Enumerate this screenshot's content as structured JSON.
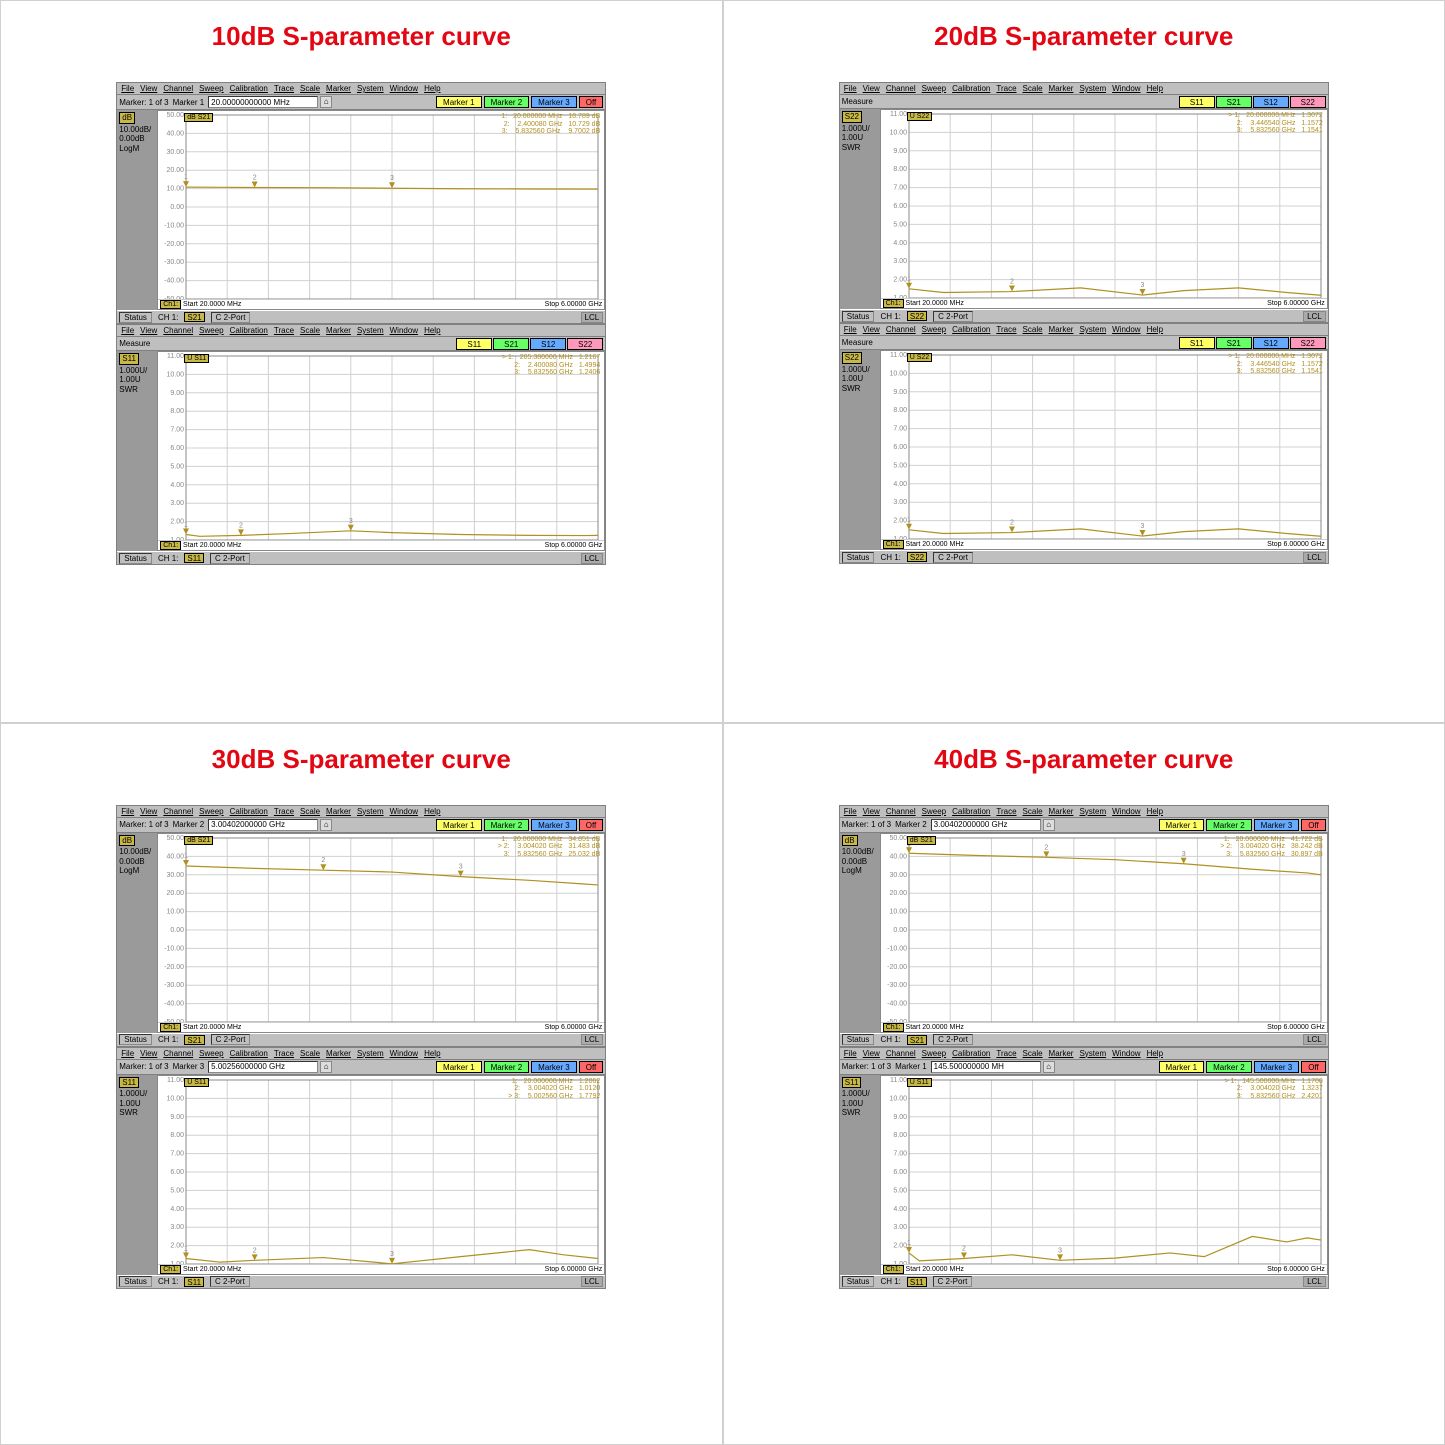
{
  "colors": {
    "title": "#e30613",
    "panel_bg": "#bfbfbf",
    "side_bg": "#9a9a9a",
    "plot_bg": "#ffffff",
    "grid": "#d0d0d0",
    "trace": "#b09020",
    "badge_bg": "#c8b848",
    "btn_marker": "#ffff66",
    "btn_marker2": "#66ff66",
    "btn_marker3": "#66aaff",
    "btn_off": "#ff6666",
    "sp_s11": "#ffff66",
    "sp_s21": "#66ff66",
    "sp_s12": "#66aaff",
    "sp_s22": "#ff99bb"
  },
  "menu": [
    "File",
    "View",
    "Channel",
    "Sweep",
    "Calibration",
    "Trace",
    "Scale",
    "Marker",
    "System",
    "Window",
    "Help"
  ],
  "marker_btns": [
    {
      "label": "Marker 1",
      "color": "#ffff66"
    },
    {
      "label": "Marker 2",
      "color": "#66ff66"
    },
    {
      "label": "Marker 3",
      "color": "#66aaff"
    },
    {
      "label": "Off",
      "color": "#ff6666"
    }
  ],
  "sp_btns": [
    {
      "label": "S11",
      "color": "#ffff66"
    },
    {
      "label": "S21",
      "color": "#66ff66"
    },
    {
      "label": "S12",
      "color": "#66aaff"
    },
    {
      "label": "S22",
      "color": "#ff99bb"
    }
  ],
  "status": {
    "left": "Status",
    "ch": "CH 1:",
    "c": "C  2-Port",
    "lcl": "LCL"
  },
  "plot": {
    "start": "Start  20.0000 MHz",
    "stop": "Stop  6.00000 GHz",
    "ch": "Ch1:"
  },
  "db_axis": {
    "ticks": [
      "50.00",
      "40.00",
      "30.00",
      "20.00",
      "10.00",
      "0.00",
      "-10.00",
      "-20.00",
      "-30.00",
      "-40.00",
      "-50.00"
    ],
    "min": -50,
    "max": 50,
    "step": 10
  },
  "swr_axis": {
    "ticks": [
      "11.00",
      "10.00",
      "9.00",
      "8.00",
      "7.00",
      "6.00",
      "5.00",
      "4.00",
      "3.00",
      "2.00",
      "1.00"
    ],
    "min": 1,
    "max": 11,
    "step": 1
  },
  "quads": [
    {
      "title": "10dB S-parameter curve",
      "panels": [
        {
          "marker_info": "Marker: 1 of 3",
          "marker_field_label": "Marker 1",
          "marker_field_value": "20.00000000000 MHz",
          "side": {
            "tag": "dB",
            "lines": [
              "10.00dB/",
              "0.00dB   LogM"
            ]
          },
          "axis": "db",
          "trace_name": "dB S21",
          "status_trace": "S21",
          "readout": [
            "1:   20.000000 MHz   10.789 dB",
            "2:    2.400080 GHz   10.729 dB",
            "3:    5.832560 GHz    9.7002 dB"
          ],
          "curve": [
            [
              0,
              10.8
            ],
            [
              0.5,
              10.7
            ],
            [
              1,
              10.6
            ],
            [
              2,
              10.5
            ],
            [
              3,
              10.2
            ],
            [
              4,
              9.9
            ],
            [
              5,
              9.8
            ],
            [
              6,
              9.7
            ]
          ]
        },
        {
          "no_markerbar": true,
          "meas_label": "Measure",
          "side": {
            "tag": "S11",
            "lines": [
              "1.000U/",
              "1.00U    SWR"
            ]
          },
          "axis": "swr",
          "trace_name": "U S11",
          "status_trace": "S11",
          "readout": [
            "> 1:   205.380000 MHz   1.2167",
            "  2:    2.400080 GHz   1.4994",
            "  3:    5.832560 GHz   1.2406"
          ],
          "curve": [
            [
              0,
              1.3
            ],
            [
              0.2,
              1.2
            ],
            [
              0.8,
              1.25
            ],
            [
              1.5,
              1.35
            ],
            [
              2.4,
              1.5
            ],
            [
              3,
              1.4
            ],
            [
              4,
              1.3
            ],
            [
              5,
              1.25
            ],
            [
              5.8,
              1.24
            ],
            [
              6,
              1.25
            ]
          ]
        }
      ]
    },
    {
      "title": "20dB S-parameter curve",
      "panels": [
        {
          "no_markerbar": true,
          "meas_label": "Measure",
          "side": {
            "tag": "S22",
            "lines": [
              "1.000U/",
              "1.00U    SWR"
            ]
          },
          "axis": "swr",
          "trace_name": "U S22",
          "status_trace": "S22",
          "readout": [
            "> 1:   20.000000 MHz   1.3072",
            "  2:    3.446540 GHz   1.1572",
            "  3:    5.832560 GHz   1.1541"
          ],
          "curve": [
            [
              0,
              1.5
            ],
            [
              0.5,
              1.3
            ],
            [
              1.5,
              1.35
            ],
            [
              2.5,
              1.55
            ],
            [
              3.4,
              1.16
            ],
            [
              4,
              1.4
            ],
            [
              4.8,
              1.55
            ],
            [
              5.5,
              1.3
            ],
            [
              6,
              1.15
            ]
          ]
        },
        {
          "no_markerbar": true,
          "meas_label": "Measure",
          "side": {
            "tag": "S22",
            "lines": [
              "1.000U/",
              "1.00U    SWR"
            ]
          },
          "axis": "swr",
          "trace_name": "U S22",
          "status_trace": "S22",
          "readout": [
            "> 1:   20.000000 MHz   1.3072",
            "  2:    3.446540 GHz   1.1572",
            "  3:    5.832560 GHz   1.1541"
          ],
          "curve": [
            [
              0,
              1.5
            ],
            [
              0.5,
              1.3
            ],
            [
              1.5,
              1.35
            ],
            [
              2.5,
              1.55
            ],
            [
              3.4,
              1.16
            ],
            [
              4,
              1.4
            ],
            [
              4.8,
              1.55
            ],
            [
              5.5,
              1.3
            ],
            [
              6,
              1.15
            ]
          ]
        }
      ]
    },
    {
      "title": "30dB S-parameter curve",
      "panels": [
        {
          "marker_info": "Marker: 1 of 3",
          "marker_field_label": "Marker 2",
          "marker_field_value": "3.00402000000 GHz",
          "side": {
            "tag": "dB",
            "lines": [
              "10.00dB/",
              "0.00dB   LogM"
            ]
          },
          "axis": "db",
          "trace_name": "dB S21",
          "status_trace": "S21",
          "readout": [
            "  1:   20.000000 MHz   34.851 dB",
            "> 2:    3.004020 GHz   31.483 dB",
            "  3:    5.832560 GHz   25.032 dB"
          ],
          "curve": [
            [
              0,
              34.8
            ],
            [
              1,
              33.5
            ],
            [
              2,
              32.5
            ],
            [
              3,
              31.5
            ],
            [
              4,
              29
            ],
            [
              5,
              27
            ],
            [
              5.8,
              25
            ],
            [
              6,
              24.5
            ]
          ]
        },
        {
          "marker_info": "Marker: 1 of 3",
          "marker_field_label": "Marker 3",
          "marker_field_value": "5.00256000000 GHz",
          "side": {
            "tag": "S11",
            "lines": [
              "1.000U/",
              "1.00U    SWR"
            ]
          },
          "axis": "swr",
          "trace_name": "U S11",
          "status_trace": "S11",
          "readout": [
            "  1:   20.000000 MHz   1.2062",
            "  2:    3.004020 GHz   1.0120",
            "> 3:    5.002560 GHz   1.7792"
          ],
          "curve": [
            [
              0,
              1.3
            ],
            [
              0.5,
              1.1
            ],
            [
              1,
              1.2
            ],
            [
              2,
              1.35
            ],
            [
              3,
              1.01
            ],
            [
              4,
              1.4
            ],
            [
              5,
              1.78
            ],
            [
              5.5,
              1.5
            ],
            [
              6,
              1.3
            ]
          ]
        }
      ]
    },
    {
      "title": "40dB S-parameter curve",
      "panels": [
        {
          "marker_info": "Marker: 1 of 3",
          "marker_field_label": "Marker 2",
          "marker_field_value": "3.00402000000 GHz",
          "side": {
            "tag": "dB",
            "lines": [
              "10.00dB/",
              "0.00dB   LogM"
            ]
          },
          "axis": "db",
          "trace_name": "dB S21",
          "status_trace": "S21",
          "readout": [
            "  1:   20.000000 MHz   41.722 dB",
            "> 2:    3.004020 GHz   38.242 dB",
            "  3:    5.832560 GHz   30.897 dB"
          ],
          "curve": [
            [
              0,
              41.7
            ],
            [
              1,
              40.5
            ],
            [
              2,
              39.5
            ],
            [
              3,
              38.2
            ],
            [
              4,
              36
            ],
            [
              5,
              33
            ],
            [
              5.8,
              31
            ],
            [
              6,
              30
            ]
          ]
        },
        {
          "marker_info": "Marker: 1 of 3",
          "marker_field_label": "Marker 1",
          "marker_field_value": "145.500000000 MH",
          "side": {
            "tag": "S11",
            "lines": [
              "1.000U/",
              "1.00U    SWR"
            ]
          },
          "axis": "swr",
          "trace_name": "U S11",
          "status_trace": "S11",
          "readout": [
            "> 1:   145.500000 MHz   1.1700",
            "  2:    3.004020 GHz   1.3237",
            "  3:    5.832560 GHz   2.4201"
          ],
          "curve": [
            [
              0,
              1.6
            ],
            [
              0.15,
              1.17
            ],
            [
              0.8,
              1.3
            ],
            [
              1.5,
              1.5
            ],
            [
              2.2,
              1.2
            ],
            [
              3,
              1.32
            ],
            [
              3.8,
              1.6
            ],
            [
              4.3,
              1.4
            ],
            [
              5,
              2.5
            ],
            [
              5.5,
              2.2
            ],
            [
              5.8,
              2.42
            ],
            [
              6,
              2.3
            ]
          ]
        }
      ]
    }
  ]
}
